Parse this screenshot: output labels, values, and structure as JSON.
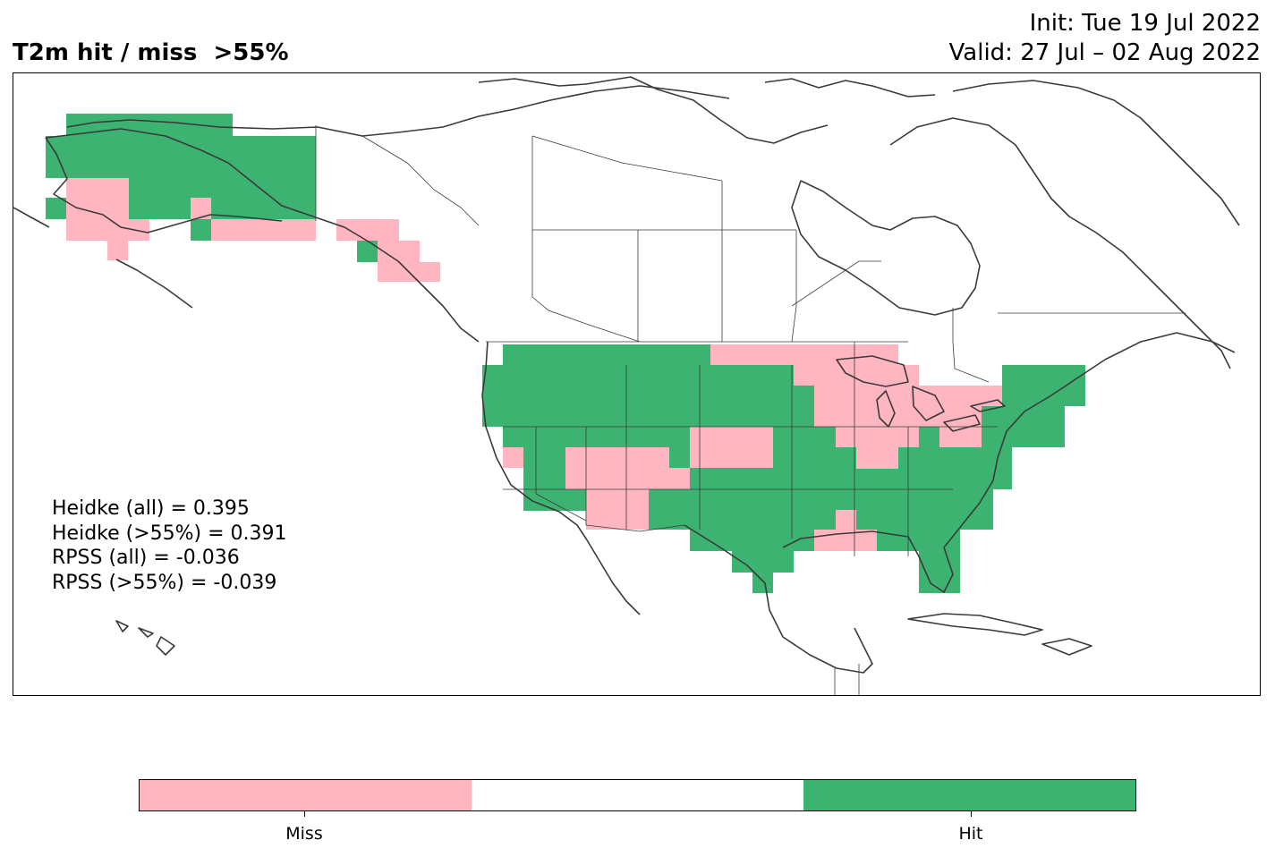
{
  "title": "T2m hit / miss  >55%",
  "init": "Init: Tue 19 Jul 2022",
  "valid": "Valid: 27 Jul – 02 Aug 2022",
  "stats": [
    "Heidke (all) = 0.395",
    "Heidke (>55%) = 0.391",
    "RPSS (all) = -0.036",
    "RPSS (>55%) = -0.039"
  ],
  "legend": {
    "categories": [
      "Miss",
      "",
      "Hit"
    ],
    "colors": [
      "#ffb6c1",
      "#ffffff",
      "#3cb371"
    ],
    "ticks": [
      "Miss",
      "Hit"
    ]
  },
  "colors": {
    "miss": "#ffb6c1",
    "hit": "#3cb371",
    "coast": "#3a3a3a"
  }
}
